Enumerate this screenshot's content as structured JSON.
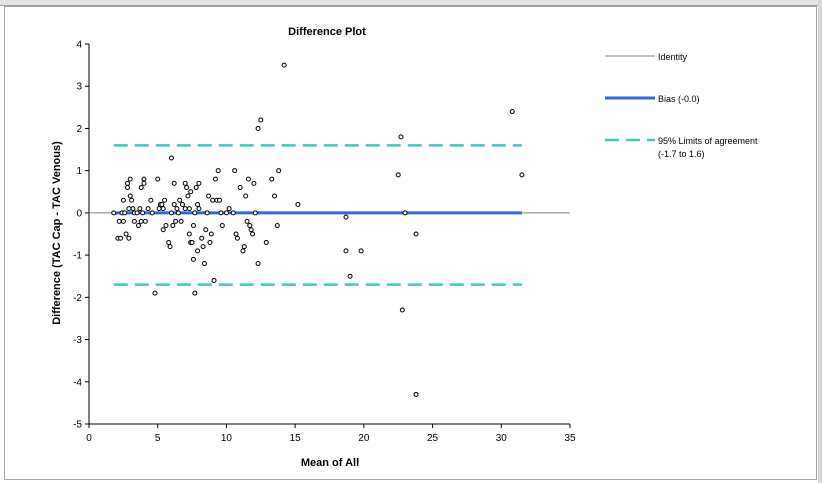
{
  "chart_data": {
    "type": "scatter",
    "title": "Difference Plot",
    "xlabel": "Mean of All",
    "ylabel": "Difference (TAC Cap - TAC Venous)",
    "xlim": [
      0,
      35
    ],
    "ylim": [
      -5,
      4
    ],
    "x_ticks": [
      0,
      5,
      10,
      15,
      20,
      25,
      30,
      35
    ],
    "y_ticks": [
      -5,
      -4,
      -3,
      -2,
      -1,
      0,
      1,
      2,
      3,
      4
    ],
    "grid": false,
    "legend_position": "right",
    "identity": {
      "name": "Identity",
      "y": 0,
      "color": "#808080"
    },
    "bias": {
      "name": "Bias (-0.0)",
      "value": 0.0,
      "x_range": [
        1.8,
        31.5
      ],
      "color": "#3366dd"
    },
    "limits": {
      "name_line1": "95% Limits of agreement",
      "name_line2": "(-1.7 to 1.6)",
      "upper": 1.6,
      "lower": -1.7,
      "x_range": [
        1.8,
        31.5
      ],
      "color": "#40c8c0"
    },
    "points": [
      [
        1.8,
        0
      ],
      [
        2.1,
        -0.6
      ],
      [
        2.2,
        -0.2
      ],
      [
        2.3,
        -0.6
      ],
      [
        2.4,
        0
      ],
      [
        2.5,
        0.3
      ],
      [
        2.5,
        -0.2
      ],
      [
        2.6,
        0
      ],
      [
        2.7,
        -0.5
      ],
      [
        2.8,
        0.6
      ],
      [
        2.8,
        0.7
      ],
      [
        2.9,
        0.1
      ],
      [
        2.9,
        -0.6
      ],
      [
        3.0,
        0.8
      ],
      [
        3.0,
        0.4
      ],
      [
        3.1,
        0.3
      ],
      [
        3.2,
        0.1
      ],
      [
        3.3,
        -0.2
      ],
      [
        3.3,
        0
      ],
      [
        3.5,
        0
      ],
      [
        3.6,
        -0.3
      ],
      [
        3.7,
        0.1
      ],
      [
        3.8,
        0.6
      ],
      [
        3.8,
        -0.2
      ],
      [
        3.9,
        0
      ],
      [
        4.0,
        0.7
      ],
      [
        4.0,
        0.8
      ],
      [
        4.1,
        -0.2
      ],
      [
        4.3,
        0.1
      ],
      [
        4.5,
        0.3
      ],
      [
        4.6,
        0
      ],
      [
        4.8,
        -1.9
      ],
      [
        5.0,
        0.8
      ],
      [
        5.1,
        0.1
      ],
      [
        5.2,
        0.2
      ],
      [
        5.3,
        0.2
      ],
      [
        5.4,
        0.1
      ],
      [
        5.4,
        -0.4
      ],
      [
        5.5,
        0.3
      ],
      [
        5.6,
        -0.3
      ],
      [
        5.8,
        -0.7
      ],
      [
        5.9,
        -0.8
      ],
      [
        6.0,
        1.3
      ],
      [
        6.0,
        0
      ],
      [
        6.1,
        -0.3
      ],
      [
        6.2,
        0.7
      ],
      [
        6.2,
        0.2
      ],
      [
        6.3,
        -0.2
      ],
      [
        6.4,
        0.1
      ],
      [
        6.5,
        0
      ],
      [
        6.6,
        0.3
      ],
      [
        6.7,
        -0.2
      ],
      [
        6.8,
        0.2
      ],
      [
        7.0,
        0.7
      ],
      [
        7.0,
        0.1
      ],
      [
        7.1,
        0.6
      ],
      [
        7.2,
        0.4
      ],
      [
        7.3,
        0.1
      ],
      [
        7.3,
        -0.5
      ],
      [
        7.4,
        -0.7
      ],
      [
        7.4,
        0.5
      ],
      [
        7.5,
        -0.7
      ],
      [
        7.6,
        -0.3
      ],
      [
        7.6,
        -1.1
      ],
      [
        7.7,
        0
      ],
      [
        7.7,
        -1.9
      ],
      [
        7.8,
        0.6
      ],
      [
        7.9,
        0.2
      ],
      [
        7.9,
        -0.9
      ],
      [
        8.0,
        0.1
      ],
      [
        8.0,
        0.7
      ],
      [
        8.2,
        -0.6
      ],
      [
        8.3,
        -0.8
      ],
      [
        8.4,
        -1.2
      ],
      [
        8.5,
        -0.4
      ],
      [
        8.6,
        0
      ],
      [
        8.7,
        0.4
      ],
      [
        8.8,
        -0.7
      ],
      [
        8.9,
        -0.5
      ],
      [
        9.0,
        0.3
      ],
      [
        9.1,
        -1.6
      ],
      [
        9.2,
        0.8
      ],
      [
        9.3,
        0.3
      ],
      [
        9.4,
        1.0
      ],
      [
        9.5,
        0.3
      ],
      [
        9.6,
        0
      ],
      [
        9.7,
        -0.3
      ],
      [
        10.0,
        0
      ],
      [
        10.2,
        0.1
      ],
      [
        10.5,
        0
      ],
      [
        10.6,
        1.0
      ],
      [
        10.7,
        -0.5
      ],
      [
        10.8,
        -0.6
      ],
      [
        11.0,
        0.6
      ],
      [
        11.2,
        -0.9
      ],
      [
        11.3,
        -0.8
      ],
      [
        11.4,
        0.4
      ],
      [
        11.5,
        -0.2
      ],
      [
        11.6,
        0.8
      ],
      [
        11.7,
        -0.3
      ],
      [
        11.8,
        -0.4
      ],
      [
        11.9,
        -0.5
      ],
      [
        12.0,
        0.7
      ],
      [
        12.1,
        0
      ],
      [
        12.3,
        2.0
      ],
      [
        12.3,
        -1.2
      ],
      [
        12.5,
        2.2
      ],
      [
        12.9,
        -0.7
      ],
      [
        13.3,
        0.8
      ],
      [
        13.5,
        0.4
      ],
      [
        13.7,
        -0.3
      ],
      [
        13.8,
        1.0
      ],
      [
        14.2,
        3.5
      ],
      [
        15.2,
        0.2
      ],
      [
        18.7,
        -0.1
      ],
      [
        18.7,
        -0.9
      ],
      [
        19.0,
        -1.5
      ],
      [
        19.8,
        -0.9
      ],
      [
        22.5,
        0.9
      ],
      [
        22.7,
        1.8
      ],
      [
        22.8,
        -2.3
      ],
      [
        23.0,
        0
      ],
      [
        23.8,
        -0.5
      ],
      [
        23.8,
        -4.3
      ],
      [
        30.8,
        2.4
      ],
      [
        31.5,
        0.9
      ]
    ]
  }
}
